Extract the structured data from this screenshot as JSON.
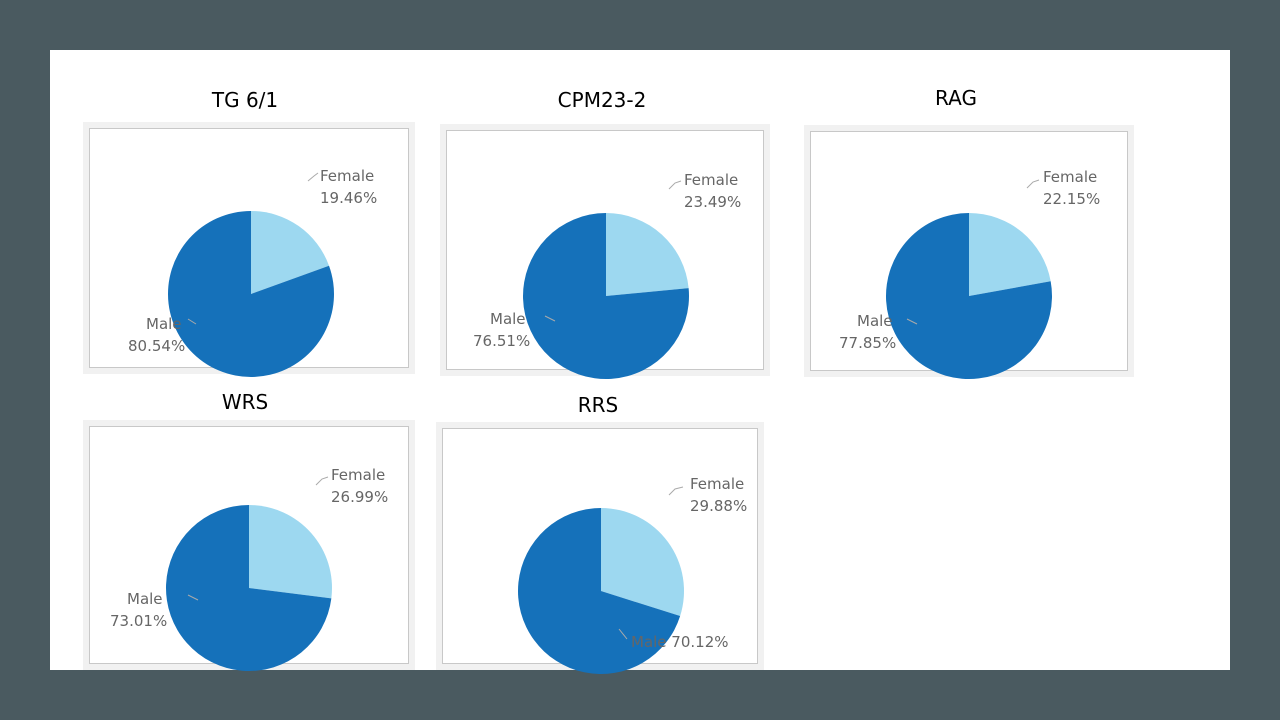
{
  "colors": {
    "male": "#1571ba",
    "female": "#9dd8f0",
    "leader": "#aaaaaa"
  },
  "chart_data": [
    {
      "type": "pie",
      "title": "TG 6/1",
      "categories": [
        "Female",
        "Male"
      ],
      "values": [
        19.46,
        80.54
      ],
      "labels": {
        "female_name": "Female",
        "female_value": "19.46%",
        "male_name": "Male",
        "male_value": "80.54%"
      }
    },
    {
      "type": "pie",
      "title": "CPM23-2",
      "categories": [
        "Female",
        "Male"
      ],
      "values": [
        23.49,
        76.51
      ],
      "labels": {
        "female_name": "Female",
        "female_value": "23.49%",
        "male_name": "Male",
        "male_value": "76.51%"
      }
    },
    {
      "type": "pie",
      "title": "RAG",
      "categories": [
        "Female",
        "Male"
      ],
      "values": [
        22.15,
        77.85
      ],
      "labels": {
        "female_name": "Female",
        "female_value": "22.15%",
        "male_name": "Male",
        "male_value": "77.85%"
      }
    },
    {
      "type": "pie",
      "title": "WRS",
      "categories": [
        "Female",
        "Male"
      ],
      "values": [
        26.99,
        73.01
      ],
      "labels": {
        "female_name": "Female",
        "female_value": "26.99%",
        "male_name": "Male",
        "male_value": "73.01%"
      }
    },
    {
      "type": "pie",
      "title": "RRS",
      "categories": [
        "Female",
        "Male"
      ],
      "values": [
        29.88,
        70.12
      ],
      "labels": {
        "female_name": "Female",
        "female_value": "29.88%",
        "male_name": "Male 70.12%",
        "male_value": ""
      }
    }
  ]
}
